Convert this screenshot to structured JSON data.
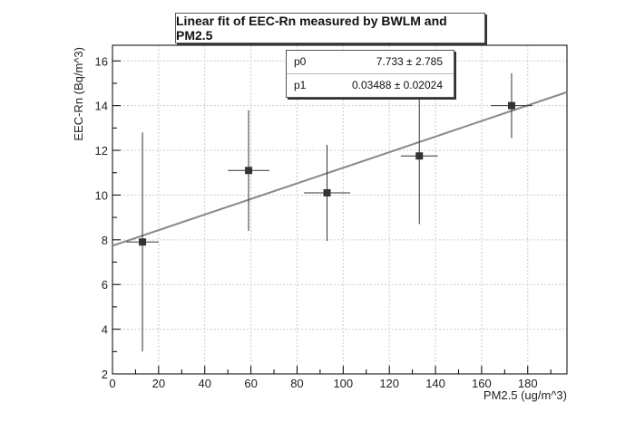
{
  "chart_data": {
    "type": "scatter",
    "title": "Linear fit of EEC-Rn measured by BWLM and PM2.5",
    "xlabel": "PM2.5 (ug/m^3)",
    "ylabel": "EEC-Rn (Bq/m^3)",
    "xlim": [
      0,
      197
    ],
    "ylim": [
      2,
      16.7
    ],
    "x_ticks": [
      0,
      20,
      40,
      60,
      80,
      100,
      120,
      140,
      160,
      180
    ],
    "y_ticks": [
      2,
      4,
      6,
      8,
      10,
      12,
      14,
      16
    ],
    "grid": true,
    "points": [
      {
        "x": 13,
        "y": 7.9,
        "xerr": 7,
        "yerr": 4.9
      },
      {
        "x": 59,
        "y": 11.1,
        "xerr": 9,
        "yerr": 2.7
      },
      {
        "x": 93,
        "y": 10.1,
        "xerr": 10,
        "yerr": 2.15
      },
      {
        "x": 133,
        "y": 11.75,
        "xerr": 8,
        "yerr": 3.05
      },
      {
        "x": 173,
        "y": 14.0,
        "xerr": 9,
        "yerr": 1.45
      }
    ],
    "fit": {
      "x_range": [
        0,
        197
      ],
      "p0": 7.733,
      "p1": 0.03488
    },
    "stats": [
      {
        "name": "p0",
        "value": "7.733 ± 2.785"
      },
      {
        "name": "p1",
        "value": "0.03488 ± 0.02024"
      }
    ],
    "colors": {
      "marker": "#333333",
      "fit": "#888888",
      "grid": "#cccccc"
    }
  }
}
